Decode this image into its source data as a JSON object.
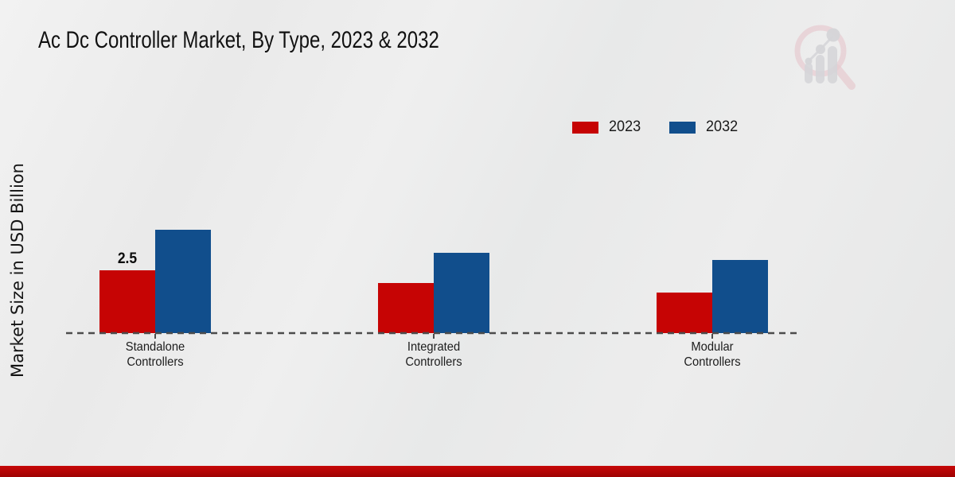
{
  "header": {
    "title": "Ac Dc Controller Market, By Type, 2023 & 2032",
    "logo_icon": "magnifier-bar-chart-watermark"
  },
  "colors": {
    "series_2023": "#c60404",
    "series_2032": "#114e8c",
    "footer_stripe": "#b20404",
    "axis": "#4c4c4c",
    "background": "#ebebeb"
  },
  "chart_data": {
    "type": "bar",
    "title": "Ac Dc Controller Market, By Type, 2023 & 2032",
    "xlabel": "",
    "ylabel": "Market Size in USD Billion",
    "categories": [
      "Standalone Controllers",
      "Integrated Controllers",
      "Modular Controllers"
    ],
    "series": [
      {
        "name": "2023",
        "color": "#c60404",
        "values": [
          2.5,
          2.0,
          1.6
        ]
      },
      {
        "name": "2032",
        "color": "#114e8c",
        "values": [
          4.1,
          3.2,
          2.9
        ]
      }
    ],
    "bar_labels": [
      {
        "series": "2023",
        "category": "Standalone Controllers",
        "text": "2.5"
      }
    ],
    "ylim": [
      0,
      4.5
    ],
    "grid": false,
    "y_ticks_visible": false,
    "legend_position": "top-right",
    "baseline_style": "dashed"
  }
}
